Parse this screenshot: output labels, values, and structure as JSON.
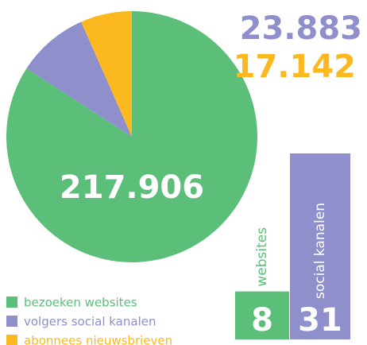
{
  "chart_data": [
    {
      "type": "pie",
      "categories": [
        "bezoeken websites",
        "volgers social kanalen",
        "abonnees nieuwsbrieven"
      ],
      "values": [
        217906,
        23883,
        17142
      ],
      "value_labels": [
        "217.906",
        "23.883",
        "17.142"
      ],
      "colors": [
        "#5bbf7a",
        "#8f8fcc",
        "#fbb91f"
      ]
    },
    {
      "type": "bar",
      "categories": [
        "websites",
        "social kanalen"
      ],
      "values": [
        8,
        31
      ],
      "colors": [
        "#5bbf7a",
        "#8f8fcc"
      ]
    }
  ]
}
